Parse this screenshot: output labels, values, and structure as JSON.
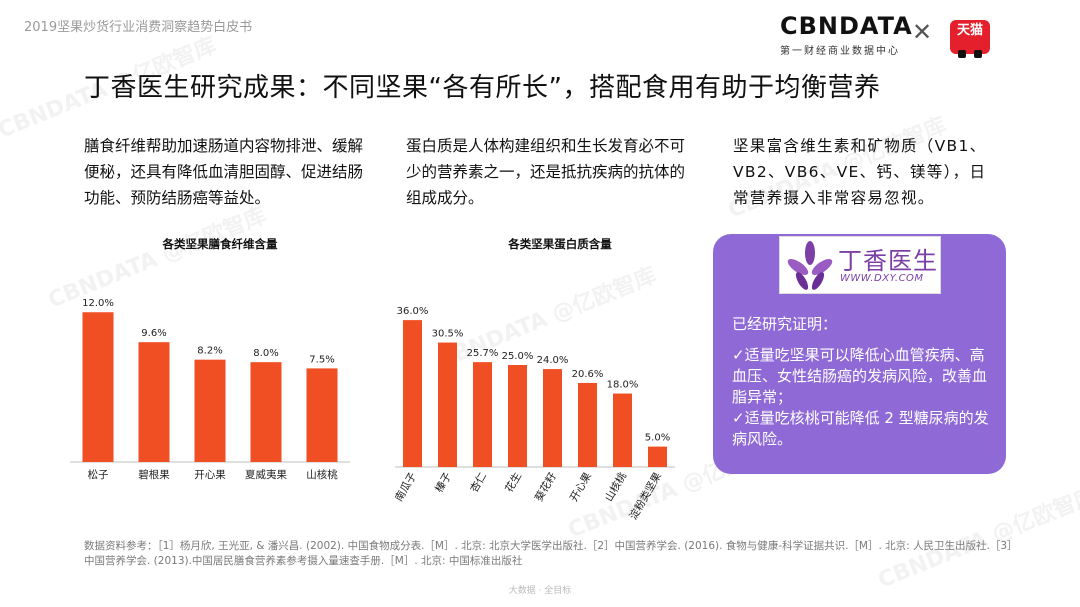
{
  "report_title": "2019坚果炒货行业消费洞察趋势白皮书",
  "brand": {
    "logo_text": "CBNDATA",
    "logo_sub": "第一财经商业数据中心",
    "cross": "✕",
    "tmall_text": "天猫",
    "tmall_color": "#e4202d"
  },
  "headline": "丁香医生研究成果：不同坚果“各有所长”，搭配食用有助于均衡营养",
  "paragraphs": {
    "fiber": "膳食纤维帮助加速肠道内容物排泄、缓解便秘，还具有降低血清胆固醇、促进结肠功能、预防结肠癌等益处。",
    "protein": "蛋白质是人体构建组织和生长发育必不可少的营养素之一，还是抵抗疾病的抗体的组成成分。",
    "vitamin": "坚果富含维生素和矿物质（VB1、VB2、VB6、VE、钙、镁等），日常营养摄入非常容易忽视。"
  },
  "chart_data": [
    {
      "type": "bar",
      "title": "各类坚果膳食纤维含量",
      "categories": [
        "松子",
        "碧根果",
        "开心果",
        "夏威夷果",
        "山核桃"
      ],
      "values": [
        12.0,
        9.6,
        8.2,
        8.0,
        7.5
      ],
      "value_labels": [
        "12.0%",
        "9.6%",
        "8.2%",
        "8.0%",
        "7.5%"
      ],
      "ylim": [
        0,
        12.5
      ],
      "grid": false,
      "bar_color": "#f04e23"
    },
    {
      "type": "bar",
      "title": "各类坚果蛋白质含量",
      "categories": [
        "南瓜子",
        "榛子",
        "杏仁",
        "花生",
        "葵花籽",
        "开心果",
        "山核桃",
        "淀粉类坚果"
      ],
      "values": [
        36.0,
        30.5,
        25.7,
        25.0,
        24.0,
        20.6,
        18.0,
        5.0
      ],
      "value_labels": [
        "36.0%",
        "30.5%",
        "25.7%",
        "25.0%",
        "24.0%",
        "20.6%",
        "18.0%",
        "5.0%"
      ],
      "ylim": [
        0,
        37.5
      ],
      "grid": false,
      "bar_color": "#f04e23"
    }
  ],
  "card": {
    "logo_name": "丁香医生",
    "logo_url": "WWW.DXY.COM",
    "logo_color": "#7b3fa6",
    "bg_color": "#8f6ad6",
    "heading": "已经研究证明：",
    "point1": "✓适量吃坚果可以降低心血管疾病、高血压、女性结肠癌的发病风险，改善血脂异常；",
    "point2": "✓适量吃核桃可能降低 2 型糖尿病的发病风险。"
  },
  "references": "数据资料参考：［1］杨月欣, 王光亚, & 潘兴昌. (2002). 中国食物成分表.［M］. 北京: 北京大学医学出版社.［2］中国营养学会. (2016). 食物与健康-科学证据共识.［M］. 北京: 人民卫生出版社.［3］中国营养学会. (2013).中国居民膳食营养素参考摄入量速查手册.［M］. 北京: 中国标准出版社",
  "footer": "大数据 · 全目标",
  "watermark": "CBNDATA @亿欧智库"
}
